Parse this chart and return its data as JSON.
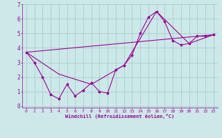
{
  "xlabel": "Windchill (Refroidissement éolien,°C)",
  "background_color": "#cce8e8",
  "grid_color": "#aacccc",
  "line_color": "#990099",
  "xlim": [
    -0.5,
    23.5
  ],
  "ylim": [
    -0.1,
    7.0
  ],
  "xticks": [
    0,
    1,
    2,
    3,
    4,
    5,
    6,
    7,
    8,
    9,
    10,
    11,
    12,
    13,
    14,
    15,
    16,
    17,
    18,
    19,
    20,
    21,
    22,
    23
  ],
  "yticks": [
    0,
    1,
    2,
    3,
    4,
    5,
    6,
    7
  ],
  "series1_x": [
    0,
    1,
    2,
    3,
    4,
    5,
    6,
    7,
    8,
    9,
    10,
    11,
    12,
    13,
    14,
    15,
    16,
    17,
    18,
    19,
    20,
    21,
    22,
    23
  ],
  "series1_y": [
    3.7,
    3.0,
    2.0,
    0.8,
    0.5,
    1.5,
    0.7,
    1.1,
    1.6,
    1.0,
    0.9,
    2.5,
    2.8,
    3.5,
    5.0,
    6.1,
    6.5,
    5.8,
    4.5,
    4.2,
    4.3,
    4.8,
    4.8,
    4.9
  ],
  "series2_x": [
    0,
    4,
    8,
    12,
    16,
    20,
    23
  ],
  "series2_y": [
    3.7,
    2.2,
    1.5,
    2.8,
    6.5,
    4.3,
    4.9
  ],
  "series3_x": [
    0,
    23
  ],
  "series3_y": [
    3.7,
    4.9
  ]
}
